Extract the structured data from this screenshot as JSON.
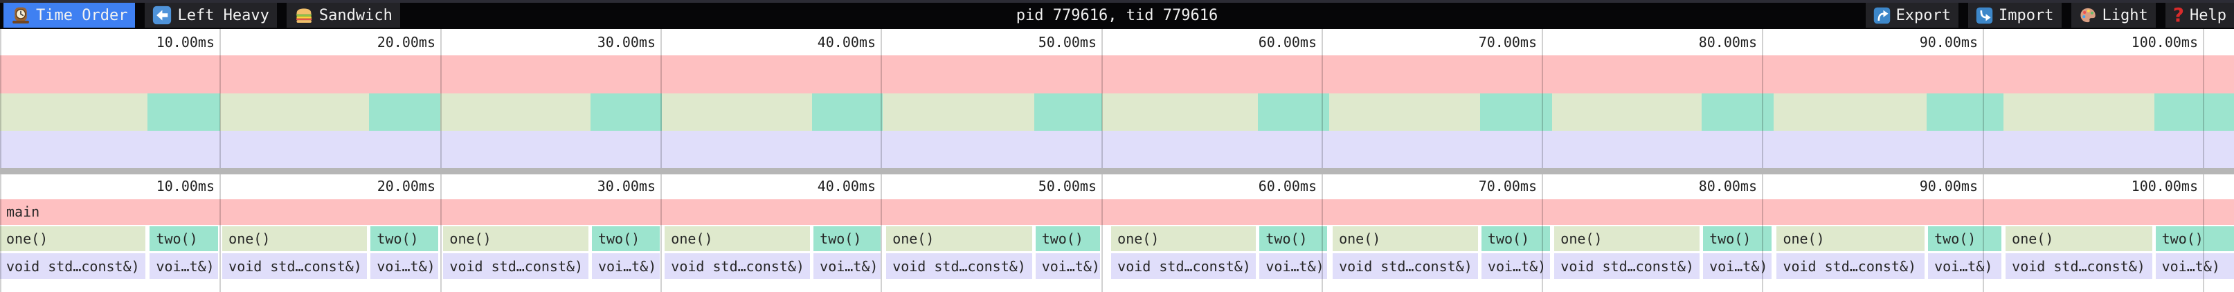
{
  "toolbar": {
    "tabs": [
      {
        "label": "Time Order",
        "icon": "clock-icon",
        "active": true
      },
      {
        "label": "Left Heavy",
        "icon": "left-arrow-icon",
        "active": false
      },
      {
        "label": "Sandwich",
        "icon": "sandwich-icon",
        "active": false
      }
    ],
    "title": "pid 779616, tid 779616",
    "actions": [
      {
        "label": "Export",
        "icon": "export-icon"
      },
      {
        "label": "Import",
        "icon": "import-icon"
      },
      {
        "label": "Light",
        "icon": "palette-icon"
      },
      {
        "label": "Help",
        "icon": "help-icon"
      }
    ]
  },
  "axis": {
    "unit": "ms",
    "tick_interval_ms": 10,
    "ticks": [
      "10.00ms",
      "20.00ms",
      "30.00ms",
      "40.00ms",
      "50.00ms",
      "60.00ms",
      "70.00ms",
      "80.00ms",
      "90.00ms",
      "100.00ms"
    ]
  },
  "flamegraph": {
    "root_label": "main",
    "labels": {
      "one": "one()",
      "two": "two()",
      "one_detail": "void std…const&)",
      "two_detail": "voi…t&)"
    },
    "iterations": [
      {
        "one": [
          0.0,
          6.7
        ],
        "two": [
          6.8,
          10.0
        ]
      },
      {
        "one": [
          10.09,
          16.76
        ],
        "two": [
          16.82,
          19.97
        ]
      },
      {
        "one": [
          20.12,
          26.8
        ],
        "two": [
          26.86,
          30.02
        ]
      },
      {
        "one": [
          30.17,
          36.86
        ],
        "two": [
          36.92,
          40.07
        ]
      },
      {
        "one": [
          40.22,
          46.93
        ],
        "two": [
          46.99,
          50.01
        ]
      },
      {
        "one": [
          50.43,
          57.1
        ],
        "two": [
          57.16,
          60.33
        ]
      },
      {
        "one": [
          60.48,
          67.17
        ],
        "two": [
          67.23,
          70.43
        ]
      },
      {
        "one": [
          70.54,
          77.23
        ],
        "two": [
          77.29,
          80.48
        ]
      },
      {
        "one": [
          80.63,
          87.44
        ],
        "two": [
          87.5,
          90.92
        ]
      },
      {
        "one": [
          91.02,
          97.76
        ],
        "two": [
          97.82,
          101.6
        ]
      }
    ],
    "visible_range_ms": [
      0,
      101.4
    ]
  },
  "colors": {
    "accent_blue": "#3f80f2",
    "frame_pink": "#fec0c1",
    "frame_green": "#dfe9cd",
    "frame_teal": "#9ce4ce",
    "frame_lavender": "#e0defa",
    "toolbar_bg": "#060608",
    "button_bg": "#232327",
    "divider_gray": "#b6b6b6",
    "help_red": "#d92b2b"
  }
}
